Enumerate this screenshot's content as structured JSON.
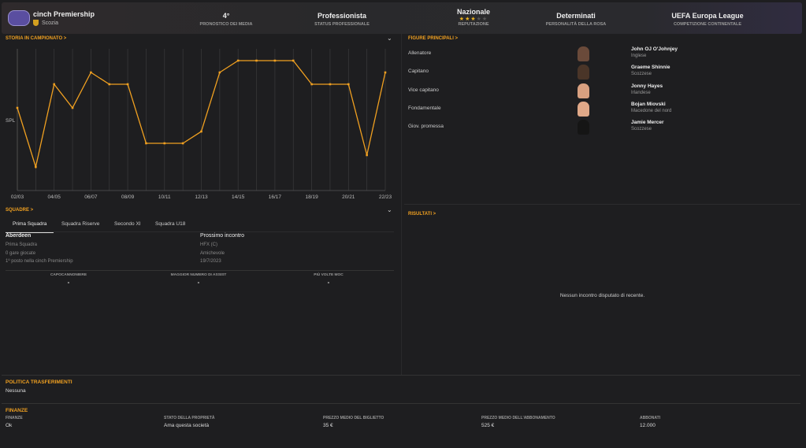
{
  "header": {
    "competition": "cinch Premiership",
    "country": "Scozia",
    "stats": [
      {
        "value": "4°",
        "label": "Pronostico dei media"
      },
      {
        "value": "Professionista",
        "label": "Status professionale"
      },
      {
        "value": "Nazionale",
        "label": "Reputazione",
        "stars": 3,
        "max_stars": 5
      },
      {
        "value": "Determinati",
        "label": "Personalità della rosa"
      },
      {
        "value": "UEFA Europa League",
        "label": "Competizione continentale"
      }
    ]
  },
  "history": {
    "title": "STORIA IN CAMPIONATO >"
  },
  "chart_data": {
    "type": "line",
    "title": "Storia in campionato",
    "ylabel": "SPL",
    "y_inverted": true,
    "ylim": [
      1,
      13
    ],
    "x": [
      "02/03",
      "03/04",
      "04/05",
      "05/06",
      "06/07",
      "07/08",
      "08/09",
      "09/10",
      "10/11",
      "11/12",
      "12/13",
      "13/14",
      "14/15",
      "15/16",
      "16/17",
      "17/18",
      "18/19",
      "19/20",
      "20/21",
      "21/22",
      "22/23"
    ],
    "xticks": [
      "02/03",
      "04/05",
      "06/07",
      "08/09",
      "10/11",
      "12/13",
      "14/15",
      "16/17",
      "18/19",
      "20/21",
      "22/23"
    ],
    "values": [
      6,
      11,
      4,
      6,
      3,
      4,
      4,
      9,
      9,
      9,
      8,
      3,
      2,
      2,
      2,
      2,
      4,
      4,
      4,
      10,
      3
    ],
    "color": "#f0a020"
  },
  "squads": {
    "title": "SQUADRE >",
    "tabs": [
      "Prima Squadra",
      "Squadra Riserve",
      "Secondo XI",
      "Squadra U18"
    ],
    "team": "Aberdeen",
    "team_lines": [
      "Prima Squadra",
      "0 gare giocate",
      "1º posto nella cinch Premiership"
    ],
    "next_title": "Prossimo incontro",
    "next_lines": [
      "HFX (C)",
      "Amichevole",
      "19/7/2023"
    ],
    "leaders": [
      {
        "label": "Capocannoniere",
        "value": "-"
      },
      {
        "label": "Maggior numero di assist",
        "value": "-"
      },
      {
        "label": "Più volte MOC",
        "value": "-"
      }
    ]
  },
  "figures": {
    "title": "FIGURE PRINCIPALI >",
    "items": [
      {
        "role": "Allenatore",
        "name": "John  OJ O'Johnjey",
        "nationality": "Inglese"
      },
      {
        "role": "Capitano",
        "name": "Graeme Shinnie",
        "nationality": "Scozzese"
      },
      {
        "role": "Vice capitano",
        "name": "Jonny Hayes",
        "nationality": "Irlandese"
      },
      {
        "role": "Fondamentale",
        "name": "Bojan Miovski",
        "nationality": "Macedone del nord"
      },
      {
        "role": "Giov. promessa",
        "name": "Jamie Mercer",
        "nationality": "Scozzese"
      }
    ]
  },
  "results": {
    "title": "RISULTATI >",
    "empty": "Nessun incontro disputato di recente."
  },
  "transfer": {
    "title": "POLITICA TRASFERIMENTI",
    "value": "Nessuna"
  },
  "finances": {
    "title": "FINANZE",
    "cols": [
      {
        "label": "Finanze",
        "value": "Ok"
      },
      {
        "label": "Stato della proprietà",
        "value": "Ama questa società"
      },
      {
        "label": "Prezzo medio del biglietto",
        "value": "35 €"
      },
      {
        "label": "Prezzo medio dell'abbonamento",
        "value": "525 €"
      },
      {
        "label": "Abbonati",
        "value": "12.000"
      }
    ]
  }
}
